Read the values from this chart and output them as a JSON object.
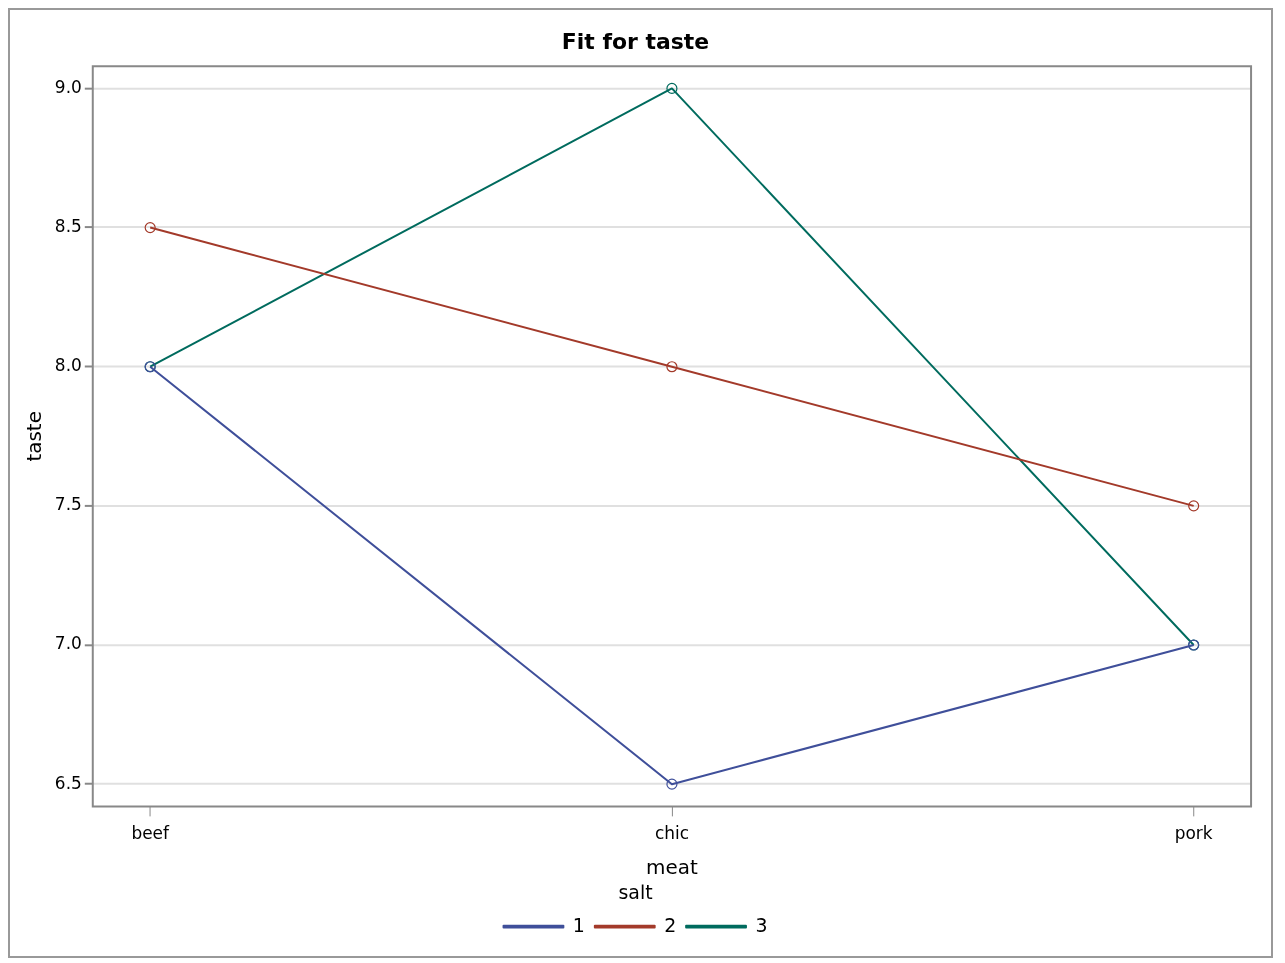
{
  "chart_data": {
    "type": "line",
    "title": "Fit for taste",
    "xlabel": "meat",
    "ylabel": "taste",
    "legend_title": "salt",
    "categories": [
      "beef",
      "chic",
      "pork"
    ],
    "series": [
      {
        "name": "1",
        "color": "#3f4f9a",
        "values": [
          8.0,
          6.5,
          7.0
        ]
      },
      {
        "name": "2",
        "color": "#a33a2a",
        "values": [
          8.5,
          8.0,
          7.5
        ]
      },
      {
        "name": "3",
        "color": "#006b5e",
        "values": [
          8.0,
          9.0,
          7.0
        ]
      }
    ],
    "ylim": [
      6.42,
      9.08
    ],
    "yticks": [
      {
        "value": 6.5,
        "label": "6.5"
      },
      {
        "value": 7,
        "label": "7.0"
      },
      {
        "value": 7.5,
        "label": "7.5"
      },
      {
        "value": 8,
        "label": "8.0"
      },
      {
        "value": 8.5,
        "label": "8.5"
      },
      {
        "value": 9,
        "label": "9.0"
      }
    ],
    "grid": "y",
    "legend": "bottom",
    "marker": "circle",
    "line_style": "solid"
  }
}
